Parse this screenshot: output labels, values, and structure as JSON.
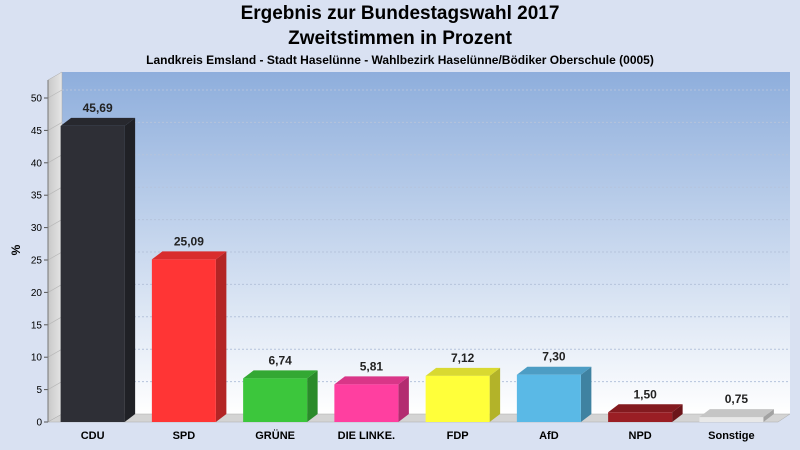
{
  "chart_data": {
    "type": "bar",
    "title": "Ergebnis zur Bundestagswahl 2017",
    "title2": "Zweitstimmen in Prozent",
    "subtitle": "Landkreis Emsland - Stadt Haselünne - Wahlbezirk Haselünne/Bödiker Oberschule (0005)",
    "ylabel": "%",
    "ylim": [
      0,
      50
    ],
    "yticks": [
      0,
      5,
      10,
      15,
      20,
      25,
      30,
      35,
      40,
      45,
      50
    ],
    "categories": [
      "CDU",
      "SPD",
      "GRÜNE",
      "DIE LINKE.",
      "FDP",
      "AfD",
      "NPD",
      "Sonstige"
    ],
    "values": [
      45.69,
      25.09,
      6.74,
      5.81,
      7.12,
      7.3,
      1.5,
      0.75
    ],
    "value_labels": [
      "45,69",
      "25,09",
      "6,74",
      "5,81",
      "7,12",
      "7,30",
      "1,50",
      "0,75"
    ],
    "colors": [
      "#2e2f36",
      "#ff3535",
      "#3cc63c",
      "#ff3fa0",
      "#ffff3a",
      "#5ab9e6",
      "#9a1e24",
      "#e8e8e8"
    ],
    "grid": true
  }
}
